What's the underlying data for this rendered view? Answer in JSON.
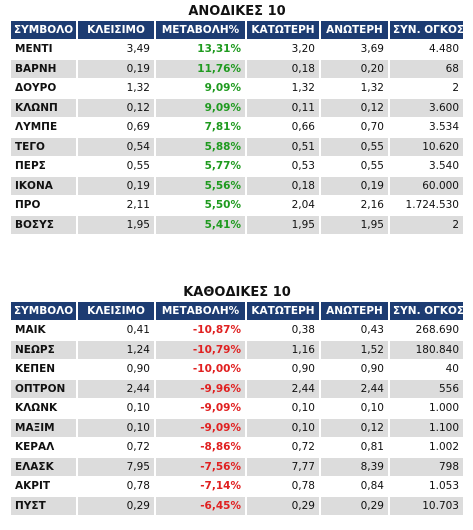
{
  "colors": {
    "header_bg": "#1d3c72",
    "gain": "#1f9a1f",
    "loss": "#e02020",
    "row_alt": "#dcdcdc"
  },
  "columns": [
    "ΣΥΜΒΟΛΟ",
    "ΚΛΕΙΣΙΜΟ",
    "ΜΕΤΑΒΟΛΗ%",
    "ΚΑΤΩΤΕΡΗ",
    "ΑΝΩΤΕΡΗ",
    "ΣΥΝ. ΟΓΚΟΣ"
  ],
  "gainers": {
    "title": "ΑΝΟΔΙΚΕΣ 10",
    "rows": [
      [
        "ΜΕΝΤΙ",
        "3,49",
        "13,31%",
        "3,20",
        "3,69",
        "4.480"
      ],
      [
        "ΒΑΡΝΗ",
        "0,19",
        "11,76%",
        "0,18",
        "0,20",
        "68"
      ],
      [
        "ΔΟΥΡΟ",
        "1,32",
        "9,09%",
        "1,32",
        "1,32",
        "2"
      ],
      [
        "ΚΛΩΝΠ",
        "0,12",
        "9,09%",
        "0,11",
        "0,12",
        "3.600"
      ],
      [
        "ΛΥΜΠΕ",
        "0,69",
        "7,81%",
        "0,66",
        "0,70",
        "3.534"
      ],
      [
        "ΤΕΓΟ",
        "0,54",
        "5,88%",
        "0,51",
        "0,55",
        "10.620"
      ],
      [
        "ΠΕΡΣ",
        "0,55",
        "5,77%",
        "0,53",
        "0,55",
        "3.540"
      ],
      [
        "ΙΚΟΝΑ",
        "0,19",
        "5,56%",
        "0,18",
        "0,19",
        "60.000"
      ],
      [
        "ΠΡΟ",
        "2,11",
        "5,50%",
        "2,04",
        "2,16",
        "1.724.530"
      ],
      [
        "ΒΟΣΥΣ",
        "1,95",
        "5,41%",
        "1,95",
        "1,95",
        "2"
      ]
    ]
  },
  "losers": {
    "title": "ΚΑΘΟΔΙΚΕΣ 10",
    "rows": [
      [
        "ΜΑΙΚ",
        "0,41",
        "-10,87%",
        "0,38",
        "0,43",
        "268.690"
      ],
      [
        "ΝΕΩΡΣ",
        "1,24",
        "-10,79%",
        "1,16",
        "1,52",
        "180.840"
      ],
      [
        "ΚΕΠΕΝ",
        "0,90",
        "-10,00%",
        "0,90",
        "0,90",
        "40"
      ],
      [
        "ΟΠΤΡΟΝ",
        "2,44",
        "-9,96%",
        "2,44",
        "2,44",
        "556"
      ],
      [
        "ΚΛΩΝΚ",
        "0,10",
        "-9,09%",
        "0,10",
        "0,10",
        "1.000"
      ],
      [
        "ΜΑΞΙΜ",
        "0,10",
        "-9,09%",
        "0,10",
        "0,12",
        "1.100"
      ],
      [
        "ΚΕΡΑΛ",
        "0,72",
        "-8,86%",
        "0,72",
        "0,81",
        "1.002"
      ],
      [
        "ΕΛΑΣΚ",
        "7,95",
        "-7,56%",
        "7,77",
        "8,39",
        "798"
      ],
      [
        "ΑΚΡΙΤ",
        "0,78",
        "-7,14%",
        "0,78",
        "0,84",
        "1.053"
      ],
      [
        "ΠΥΣΤ",
        "0,29",
        "-6,45%",
        "0,29",
        "0,29",
        "10.703"
      ]
    ]
  }
}
